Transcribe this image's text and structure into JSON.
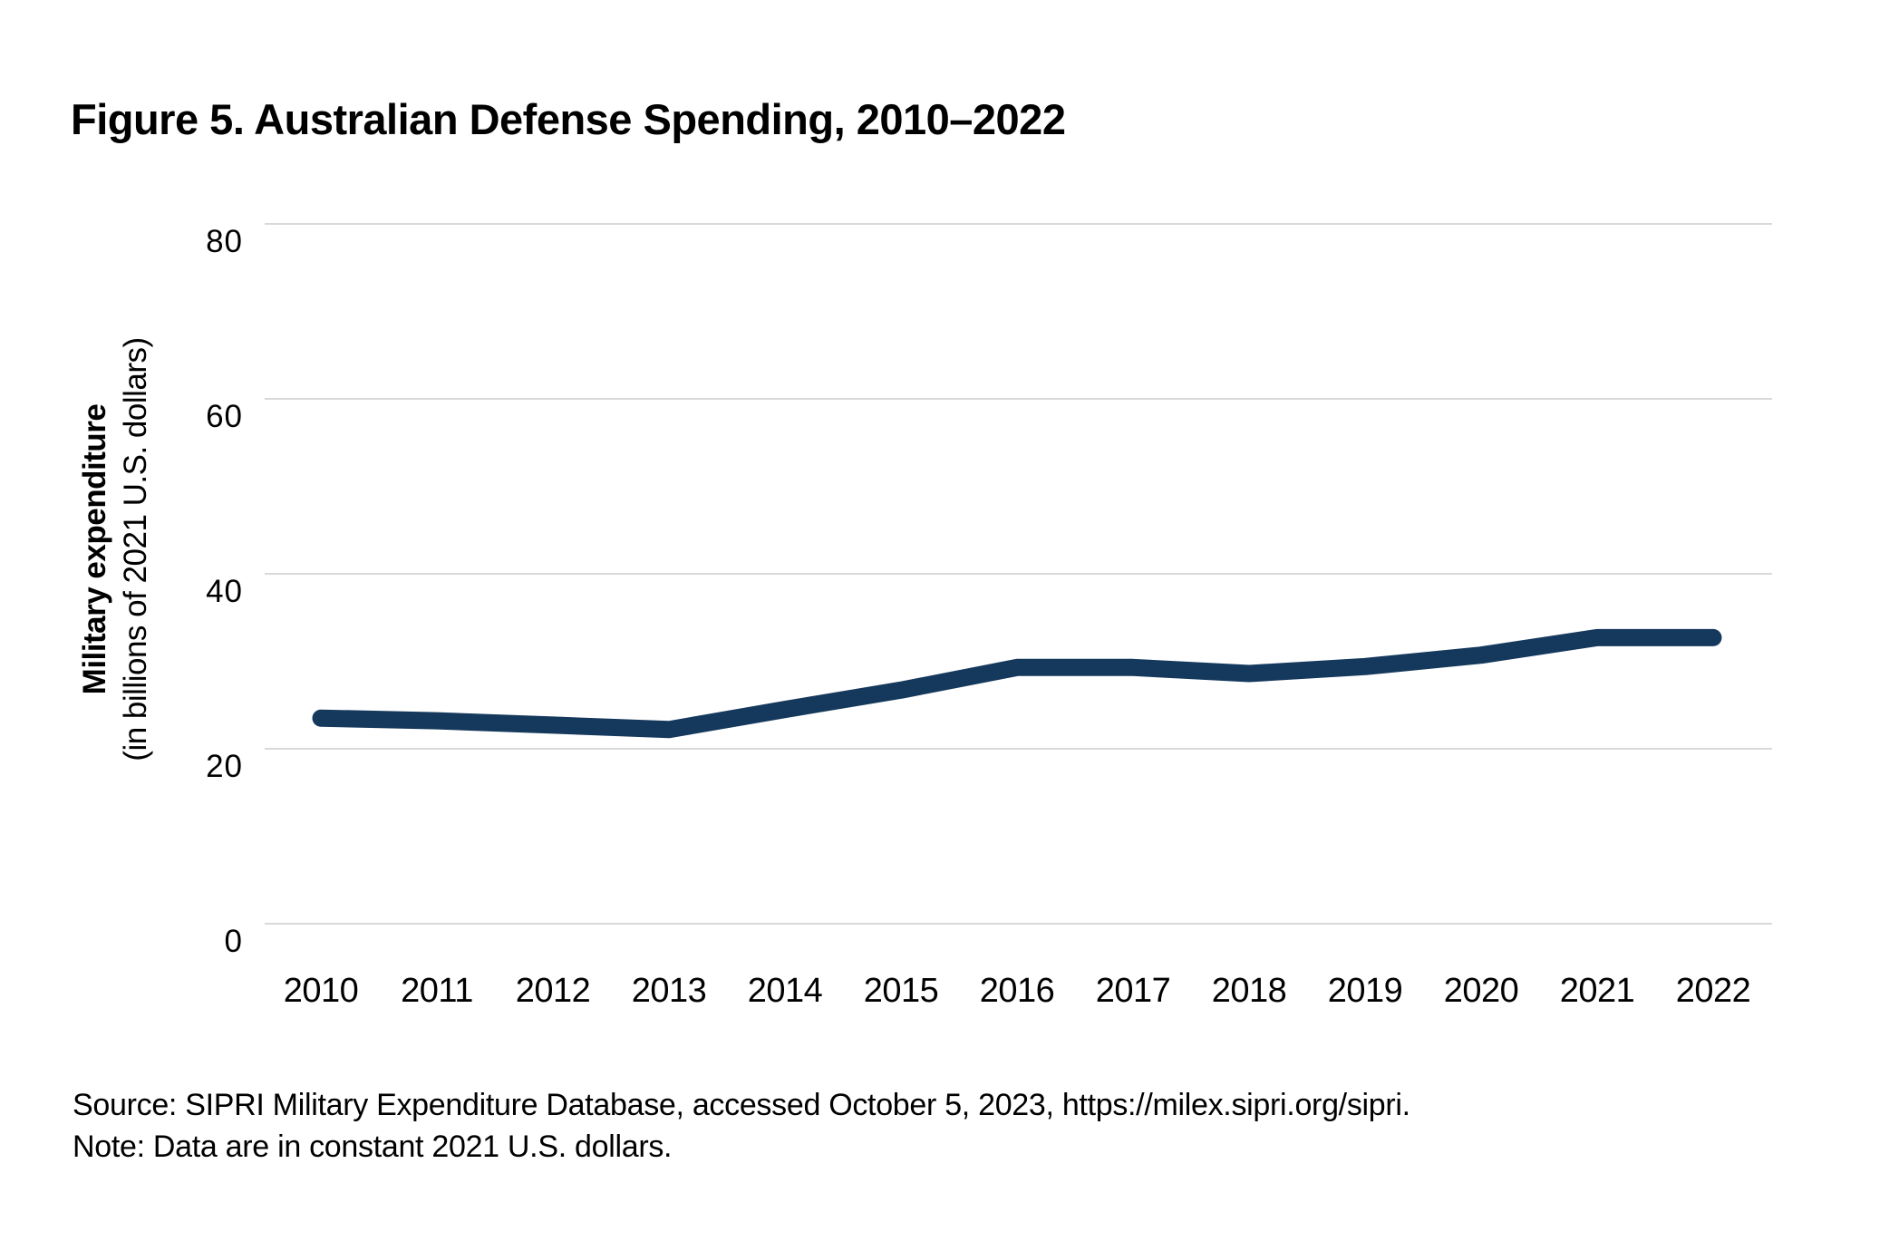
{
  "title": "Figure 5. Australian Defense Spending, 2010–2022",
  "y_axis": {
    "label_bold": "Military expenditure",
    "label_sub": "(in billions of 2021 U.S. dollars)"
  },
  "footer": {
    "source": "Source: SIPRI Military Expenditure Database, accessed October 5, 2023, https://milex.sipri.org/sipri.",
    "note": "Note: Data are in constant 2021 U.S. dollars."
  },
  "colors": {
    "line": "#15395d",
    "gridline": "#d9d9d9",
    "text": "#000000",
    "background": "#ffffff"
  },
  "chart_data": {
    "type": "line",
    "title": "Figure 5. Australian Defense Spending, 2010–2022",
    "x": [
      2010,
      2011,
      2012,
      2013,
      2014,
      2015,
      2016,
      2017,
      2018,
      2019,
      2020,
      2021,
      2022
    ],
    "series": [
      {
        "name": "Military expenditure",
        "values": [
          23.5,
          23.2,
          22.7,
          22.2,
          24.5,
          26.7,
          29.3,
          29.3,
          28.6,
          29.4,
          30.7,
          32.7,
          32.7
        ]
      }
    ],
    "xlabel": "",
    "ylabel": "Military expenditure (in billions of 2021 U.S. dollars)",
    "ylim": [
      0,
      80
    ],
    "yticks": [
      0,
      20,
      40,
      60,
      80
    ],
    "grid": "horizontal-only",
    "legend": "none"
  }
}
